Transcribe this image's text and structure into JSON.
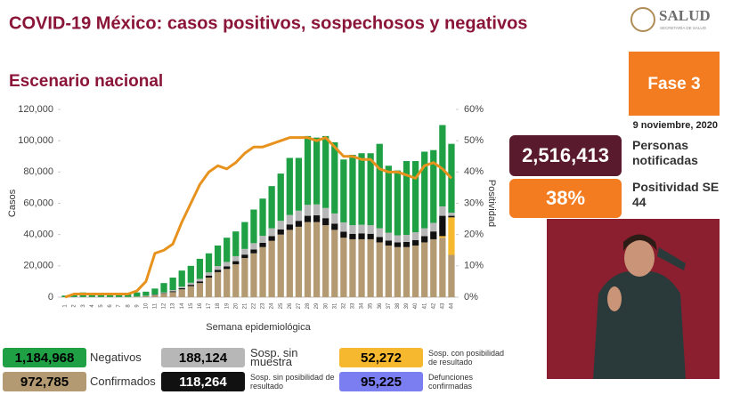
{
  "header": {
    "title": "COVID-19 México: casos positivos, sospechosos y negativos",
    "subtitle": "Escenario nacional",
    "logo_text": "SALUD",
    "logo_subtext": "SECRETARÍA DE SALUD"
  },
  "panel": {
    "phase": "Fase 3",
    "date": "9 noviembre, 2020",
    "notified_value": "2,516,413",
    "notified_label": "Personas notificadas",
    "positivity_value": "38%",
    "positivity_label": "Positividad SE 44"
  },
  "chart_data": {
    "type": "bar",
    "stacked": true,
    "y_label": "Casos",
    "y2_label": "Positividad",
    "x_label": "Semana epidemiológica",
    "categories": [
      "1",
      "2",
      "3",
      "4",
      "5",
      "6",
      "7",
      "8",
      "9",
      "10",
      "11",
      "12",
      "13",
      "14",
      "15",
      "16",
      "17",
      "18",
      "19",
      "20",
      "21",
      "22",
      "23",
      "24",
      "25",
      "26",
      "27",
      "28",
      "29",
      "30",
      "31",
      "32",
      "33",
      "34",
      "35",
      "36",
      "37",
      "38",
      "39",
      "40",
      "41",
      "42",
      "43",
      "44"
    ],
    "ylim": [
      0,
      120000
    ],
    "yticks": [
      0,
      {
        "value": 20000,
        "label": "20,000"
      },
      {
        "value": 40000,
        "label": "40,000"
      },
      {
        "value": 60000,
        "label": "60,000"
      },
      {
        "value": 80000,
        "label": "80,000"
      },
      {
        "value": 100000,
        "label": "100,000"
      },
      {
        "value": 120000,
        "label": "120,000"
      }
    ],
    "y2lim": [
      0,
      60
    ],
    "y2ticks": [
      {
        "value": 0,
        "label": "0%"
      },
      {
        "value": 10,
        "label": "10%"
      },
      {
        "value": 20,
        "label": "20%"
      },
      {
        "value": 30,
        "label": "30%"
      },
      {
        "value": 40,
        "label": "40%"
      },
      {
        "value": 50,
        "label": "50%"
      },
      {
        "value": 60,
        "label": "60%"
      }
    ],
    "series": [
      {
        "name": "Confirmados",
        "total": "972,785",
        "color": "#b39a72",
        "values": [
          0,
          100,
          100,
          100,
          100,
          100,
          100,
          200,
          300,
          600,
          1200,
          2200,
          3200,
          5000,
          7000,
          9000,
          12500,
          16000,
          18000,
          21000,
          25000,
          28000,
          32000,
          36000,
          40000,
          43000,
          45000,
          48000,
          48000,
          46000,
          43000,
          38000,
          37000,
          37000,
          37000,
          35000,
          33000,
          32000,
          32000,
          33000,
          35000,
          37000,
          38000,
          27000
        ]
      },
      {
        "name": "Sosp. con posibilidad de resultado",
        "total": "52,272",
        "color": "#f5b82e",
        "values": [
          0,
          0,
          0,
          0,
          0,
          0,
          0,
          0,
          0,
          0,
          0,
          0,
          0,
          0,
          0,
          0,
          0,
          0,
          0,
          0,
          0,
          0,
          0,
          0,
          0,
          0,
          0,
          0,
          0,
          0,
          0,
          0,
          0,
          0,
          0,
          0,
          0,
          0,
          0,
          0,
          0,
          0,
          1000,
          24000
        ]
      },
      {
        "name": "Sosp. sin posibilidad de resultado",
        "total": "118,264",
        "color": "#111111",
        "values": [
          0,
          0,
          0,
          0,
          0,
          0,
          0,
          0,
          0,
          100,
          200,
          300,
          500,
          700,
          900,
          1100,
          1300,
          1500,
          1700,
          2000,
          2200,
          2500,
          2700,
          3000,
          3300,
          3500,
          3800,
          4000,
          4300,
          4500,
          4000,
          3800,
          3500,
          3800,
          3500,
          3500,
          3200,
          3000,
          3300,
          3500,
          4000,
          5000,
          13000,
          1000
        ]
      },
      {
        "name": "Sosp. sin muestra",
        "total": "188,124",
        "color": "#b7b7b7",
        "values": [
          0,
          0,
          0,
          0,
          0,
          0,
          0,
          0,
          100,
          200,
          300,
          500,
          800,
          1000,
          1300,
          1600,
          2000,
          2400,
          2800,
          3200,
          3600,
          4000,
          4500,
          5000,
          5500,
          6000,
          6500,
          7000,
          7000,
          6500,
          6500,
          6000,
          5500,
          5500,
          5500,
          5500,
          5000,
          4500,
          4500,
          5000,
          5000,
          5500,
          6000,
          2000
        ]
      },
      {
        "name": "Negativos",
        "total": "1,184,968",
        "color": "#1fa045",
        "values": [
          1000,
          1900,
          2900,
          2400,
          2400,
          2400,
          2400,
          2300,
          2600,
          2600,
          3800,
          6000,
          8000,
          10300,
          10800,
          12800,
          12200,
          13100,
          15500,
          15800,
          17200,
          21500,
          23800,
          27000,
          30200,
          36500,
          33700,
          44000,
          42700,
          46000,
          45500,
          40200,
          45000,
          45700,
          46000,
          54000,
          42800,
          41500,
          47200,
          45500,
          49000,
          46500,
          52000,
          44000
        ]
      },
      {
        "name": "Positividad",
        "type": "line",
        "axis": "y2",
        "color": "#e8921e",
        "values": [
          0,
          1,
          1,
          1,
          1,
          1,
          1,
          1,
          2,
          5,
          14,
          15,
          17,
          24,
          30,
          36,
          40,
          42,
          41,
          43,
          46,
          48,
          48,
          49,
          50,
          51,
          51,
          51,
          50,
          51,
          48,
          45,
          45,
          44,
          44,
          41,
          40,
          40,
          39,
          38,
          42,
          43,
          41,
          38
        ]
      }
    ],
    "deaths": {
      "name": "Defunciones confirmadas",
      "total": "95,225",
      "color": "#7b7ef0"
    }
  }
}
